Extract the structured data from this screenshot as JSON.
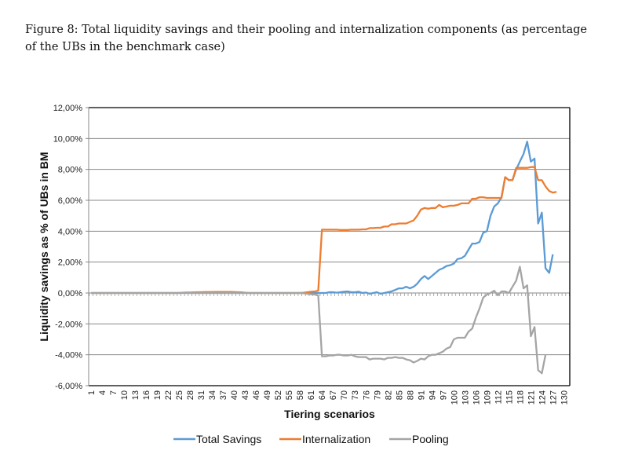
{
  "caption": "Figure 8: Total liquidity savings and their pooling and internalization components (as percentage of the UBs in the benchmark case)",
  "chart_data": {
    "type": "line",
    "title": "",
    "xlabel": "Tiering scenarios",
    "ylabel": "Liquidity savings as % of UBs in BM",
    "ylim": [
      -6,
      12
    ],
    "yticks": [
      -6,
      -4,
      -2,
      0,
      2,
      4,
      6,
      8,
      10,
      12
    ],
    "ytick_labels": [
      "-6,00%",
      "-4,00%",
      "-2,00%",
      "0,00%",
      "2,00%",
      "4,00%",
      "6,00%",
      "8,00%",
      "10,00%",
      "12,00%"
    ],
    "x_count": 132,
    "xtick_labels": [
      "1",
      "4",
      "7",
      "10",
      "13",
      "16",
      "19",
      "22",
      "25",
      "28",
      "31",
      "34",
      "37",
      "40",
      "43",
      "46",
      "49",
      "52",
      "55",
      "58",
      "61",
      "64",
      "67",
      "70",
      "73",
      "76",
      "79",
      "82",
      "85",
      "88",
      "91",
      "94",
      "97",
      "100",
      "103",
      "106",
      "109",
      "112",
      "115",
      "118",
      "121",
      "124",
      "127",
      "130"
    ],
    "grid": true,
    "legend": "bottom",
    "series": [
      {
        "name": "Total Savings",
        "color": "#5b9bd5",
        "values": [
          0,
          0,
          0,
          0,
          0,
          0,
          0,
          0,
          0,
          0,
          0,
          0,
          0,
          0,
          0,
          0,
          0,
          0,
          0,
          0,
          0,
          0,
          0,
          0,
          0,
          0,
          0,
          0,
          0,
          0,
          0,
          0,
          0,
          0,
          0,
          0,
          0,
          0,
          0,
          0,
          0,
          0,
          0,
          0,
          0,
          0,
          0,
          0,
          0,
          0,
          0,
          0,
          0,
          0,
          0,
          0,
          0,
          0,
          0,
          0,
          0,
          0,
          0,
          0,
          0,
          0.05,
          0.05,
          0.02,
          0.05,
          0.08,
          0.1,
          0.05,
          0.05,
          0.08,
          0,
          0.03,
          -0.05,
          0,
          0.05,
          -0.05,
          0,
          0.05,
          0.1,
          0.2,
          0.3,
          0.3,
          0.4,
          0.3,
          0.4,
          0.6,
          0.9,
          1.1,
          0.9,
          1.1,
          1.3,
          1.5,
          1.6,
          1.75,
          1.8,
          1.9,
          2.2,
          2.25,
          2.4,
          2.8,
          3.2,
          3.2,
          3.3,
          3.9,
          4.0,
          5.0,
          5.6,
          5.8,
          6.2,
          7.5,
          7.3,
          7.3,
          8.0,
          8.5,
          9.0,
          9.8,
          8.5,
          8.7,
          4.5,
          5.2,
          1.6,
          1.3,
          2.5
        ]
      },
      {
        "name": "Internalization",
        "color": "#ed7d31",
        "values": [
          0,
          0,
          0,
          0,
          0,
          0,
          0,
          0,
          0,
          0,
          0,
          0,
          0,
          0,
          0,
          0,
          0,
          0,
          0,
          0,
          0,
          0,
          0,
          0,
          0,
          0.02,
          0.03,
          0.03,
          0.04,
          0.05,
          0.05,
          0.06,
          0.06,
          0.06,
          0.07,
          0.07,
          0.07,
          0.07,
          0.07,
          0.06,
          0.05,
          0.04,
          0.02,
          0,
          0,
          0,
          0,
          0,
          0,
          0,
          0,
          0,
          0,
          0,
          0,
          0,
          0,
          0,
          0.02,
          0.05,
          0.08,
          0.1,
          0.15,
          4.1,
          4.1,
          4.1,
          4.1,
          4.1,
          4.08,
          4.08,
          4.08,
          4.1,
          4.1,
          4.1,
          4.12,
          4.12,
          4.2,
          4.2,
          4.22,
          4.22,
          4.3,
          4.3,
          4.45,
          4.45,
          4.5,
          4.5,
          4.5,
          4.6,
          4.7,
          5.0,
          5.4,
          5.5,
          5.45,
          5.5,
          5.5,
          5.7,
          5.55,
          5.6,
          5.65,
          5.65,
          5.7,
          5.8,
          5.8,
          5.8,
          6.1,
          6.1,
          6.2,
          6.2,
          6.15,
          6.15,
          6.15,
          6.15,
          6.15,
          7.5,
          7.3,
          7.3,
          8.1,
          8.1,
          8.1,
          8.1,
          8.15,
          8.15,
          7.3,
          7.3,
          6.9,
          6.6,
          6.5,
          6.55
        ]
      },
      {
        "name": "Pooling",
        "color": "#a5a5a5",
        "values": [
          0,
          0,
          0,
          0,
          0,
          0,
          0,
          0,
          0,
          0,
          0,
          0,
          0,
          0,
          0,
          0,
          0,
          0,
          0,
          0,
          0,
          0,
          0,
          0,
          0,
          0,
          0,
          0,
          0,
          0,
          0,
          0,
          0,
          0,
          0,
          0,
          0,
          0,
          0,
          0,
          0,
          0,
          0,
          0,
          0,
          0,
          0,
          0,
          0,
          0,
          0,
          0,
          0,
          0,
          0,
          0,
          0,
          0,
          -0.02,
          -0.05,
          -0.08,
          -0.1,
          -0.15,
          -4.1,
          -4.1,
          -4.05,
          -4.05,
          -4.0,
          -4.0,
          -4.05,
          -4.05,
          -4.0,
          -4.1,
          -4.15,
          -4.15,
          -4.15,
          -4.3,
          -4.25,
          -4.25,
          -4.25,
          -4.3,
          -4.2,
          -4.2,
          -4.15,
          -4.2,
          -4.2,
          -4.3,
          -4.35,
          -4.5,
          -4.4,
          -4.25,
          -4.3,
          -4.1,
          -4.0,
          -4.0,
          -3.9,
          -3.8,
          -3.6,
          -3.5,
          -3.0,
          -2.9,
          -2.9,
          -2.9,
          -2.5,
          -2.3,
          -1.6,
          -1.0,
          -0.3,
          -0.1,
          0.0,
          0.15,
          -0.15,
          0.1,
          0.1,
          0.0,
          0.4,
          0.8,
          1.7,
          0.3,
          0.5,
          -2.8,
          -2.2,
          -5.0,
          -5.2,
          -4.0
        ]
      }
    ]
  }
}
